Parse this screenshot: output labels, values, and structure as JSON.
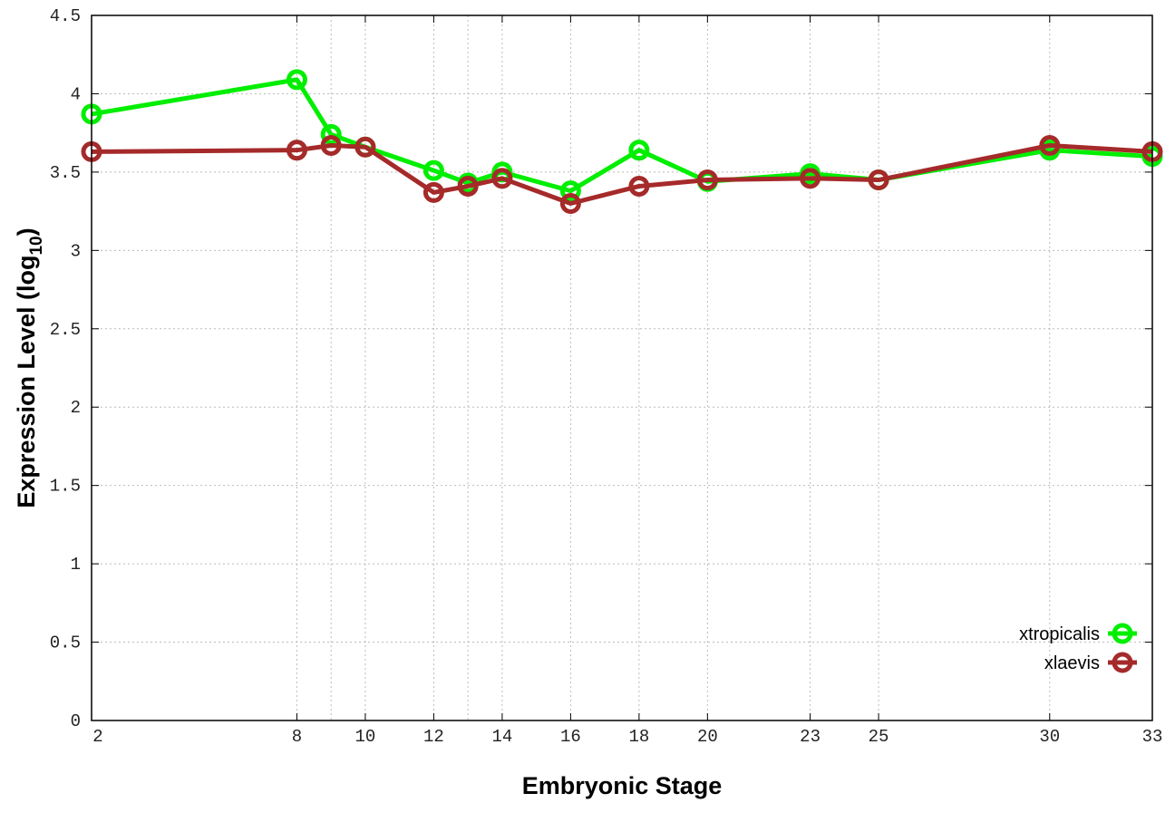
{
  "chart_data": {
    "type": "line",
    "xlabel": "Embryonic Stage",
    "ylabel": "Expression Level (log",
    "ylabel_sub": "10",
    "ylabel_end": ")",
    "xlim": [
      2,
      33
    ],
    "ylim": [
      0,
      4.5
    ],
    "yticks": [
      0,
      0.5,
      1,
      1.5,
      2,
      2.5,
      3,
      3.5,
      4,
      4.5
    ],
    "ytick_labels": [
      "0",
      "0.5",
      "1",
      "1.5",
      "2",
      "2.5",
      "3",
      "3.5",
      "4",
      "4.5"
    ],
    "xticks": [
      2,
      8,
      10,
      12,
      14,
      16,
      18,
      20,
      23,
      25,
      30,
      33
    ],
    "xtick_labels": [
      "2",
      "8",
      "10",
      "12",
      "14",
      "16",
      "18",
      "20",
      "23",
      "25",
      "30",
      "33"
    ],
    "grid": true,
    "legend_position": "bottom-right",
    "x": [
      2,
      8,
      9,
      10,
      12,
      13,
      14,
      16,
      18,
      20,
      23,
      25,
      30,
      33
    ],
    "series": [
      {
        "name": "xtropicalis",
        "color": "#00ee00",
        "values": [
          3.87,
          4.09,
          3.74,
          3.66,
          3.51,
          3.43,
          3.5,
          3.38,
          3.64,
          3.44,
          3.49,
          3.45,
          3.64,
          3.6
        ]
      },
      {
        "name": "xlaevis",
        "color": "#a52a2a",
        "values": [
          3.63,
          3.64,
          3.67,
          3.66,
          3.37,
          3.41,
          3.46,
          3.3,
          3.41,
          3.45,
          3.46,
          3.45,
          3.67,
          3.63
        ]
      }
    ]
  }
}
